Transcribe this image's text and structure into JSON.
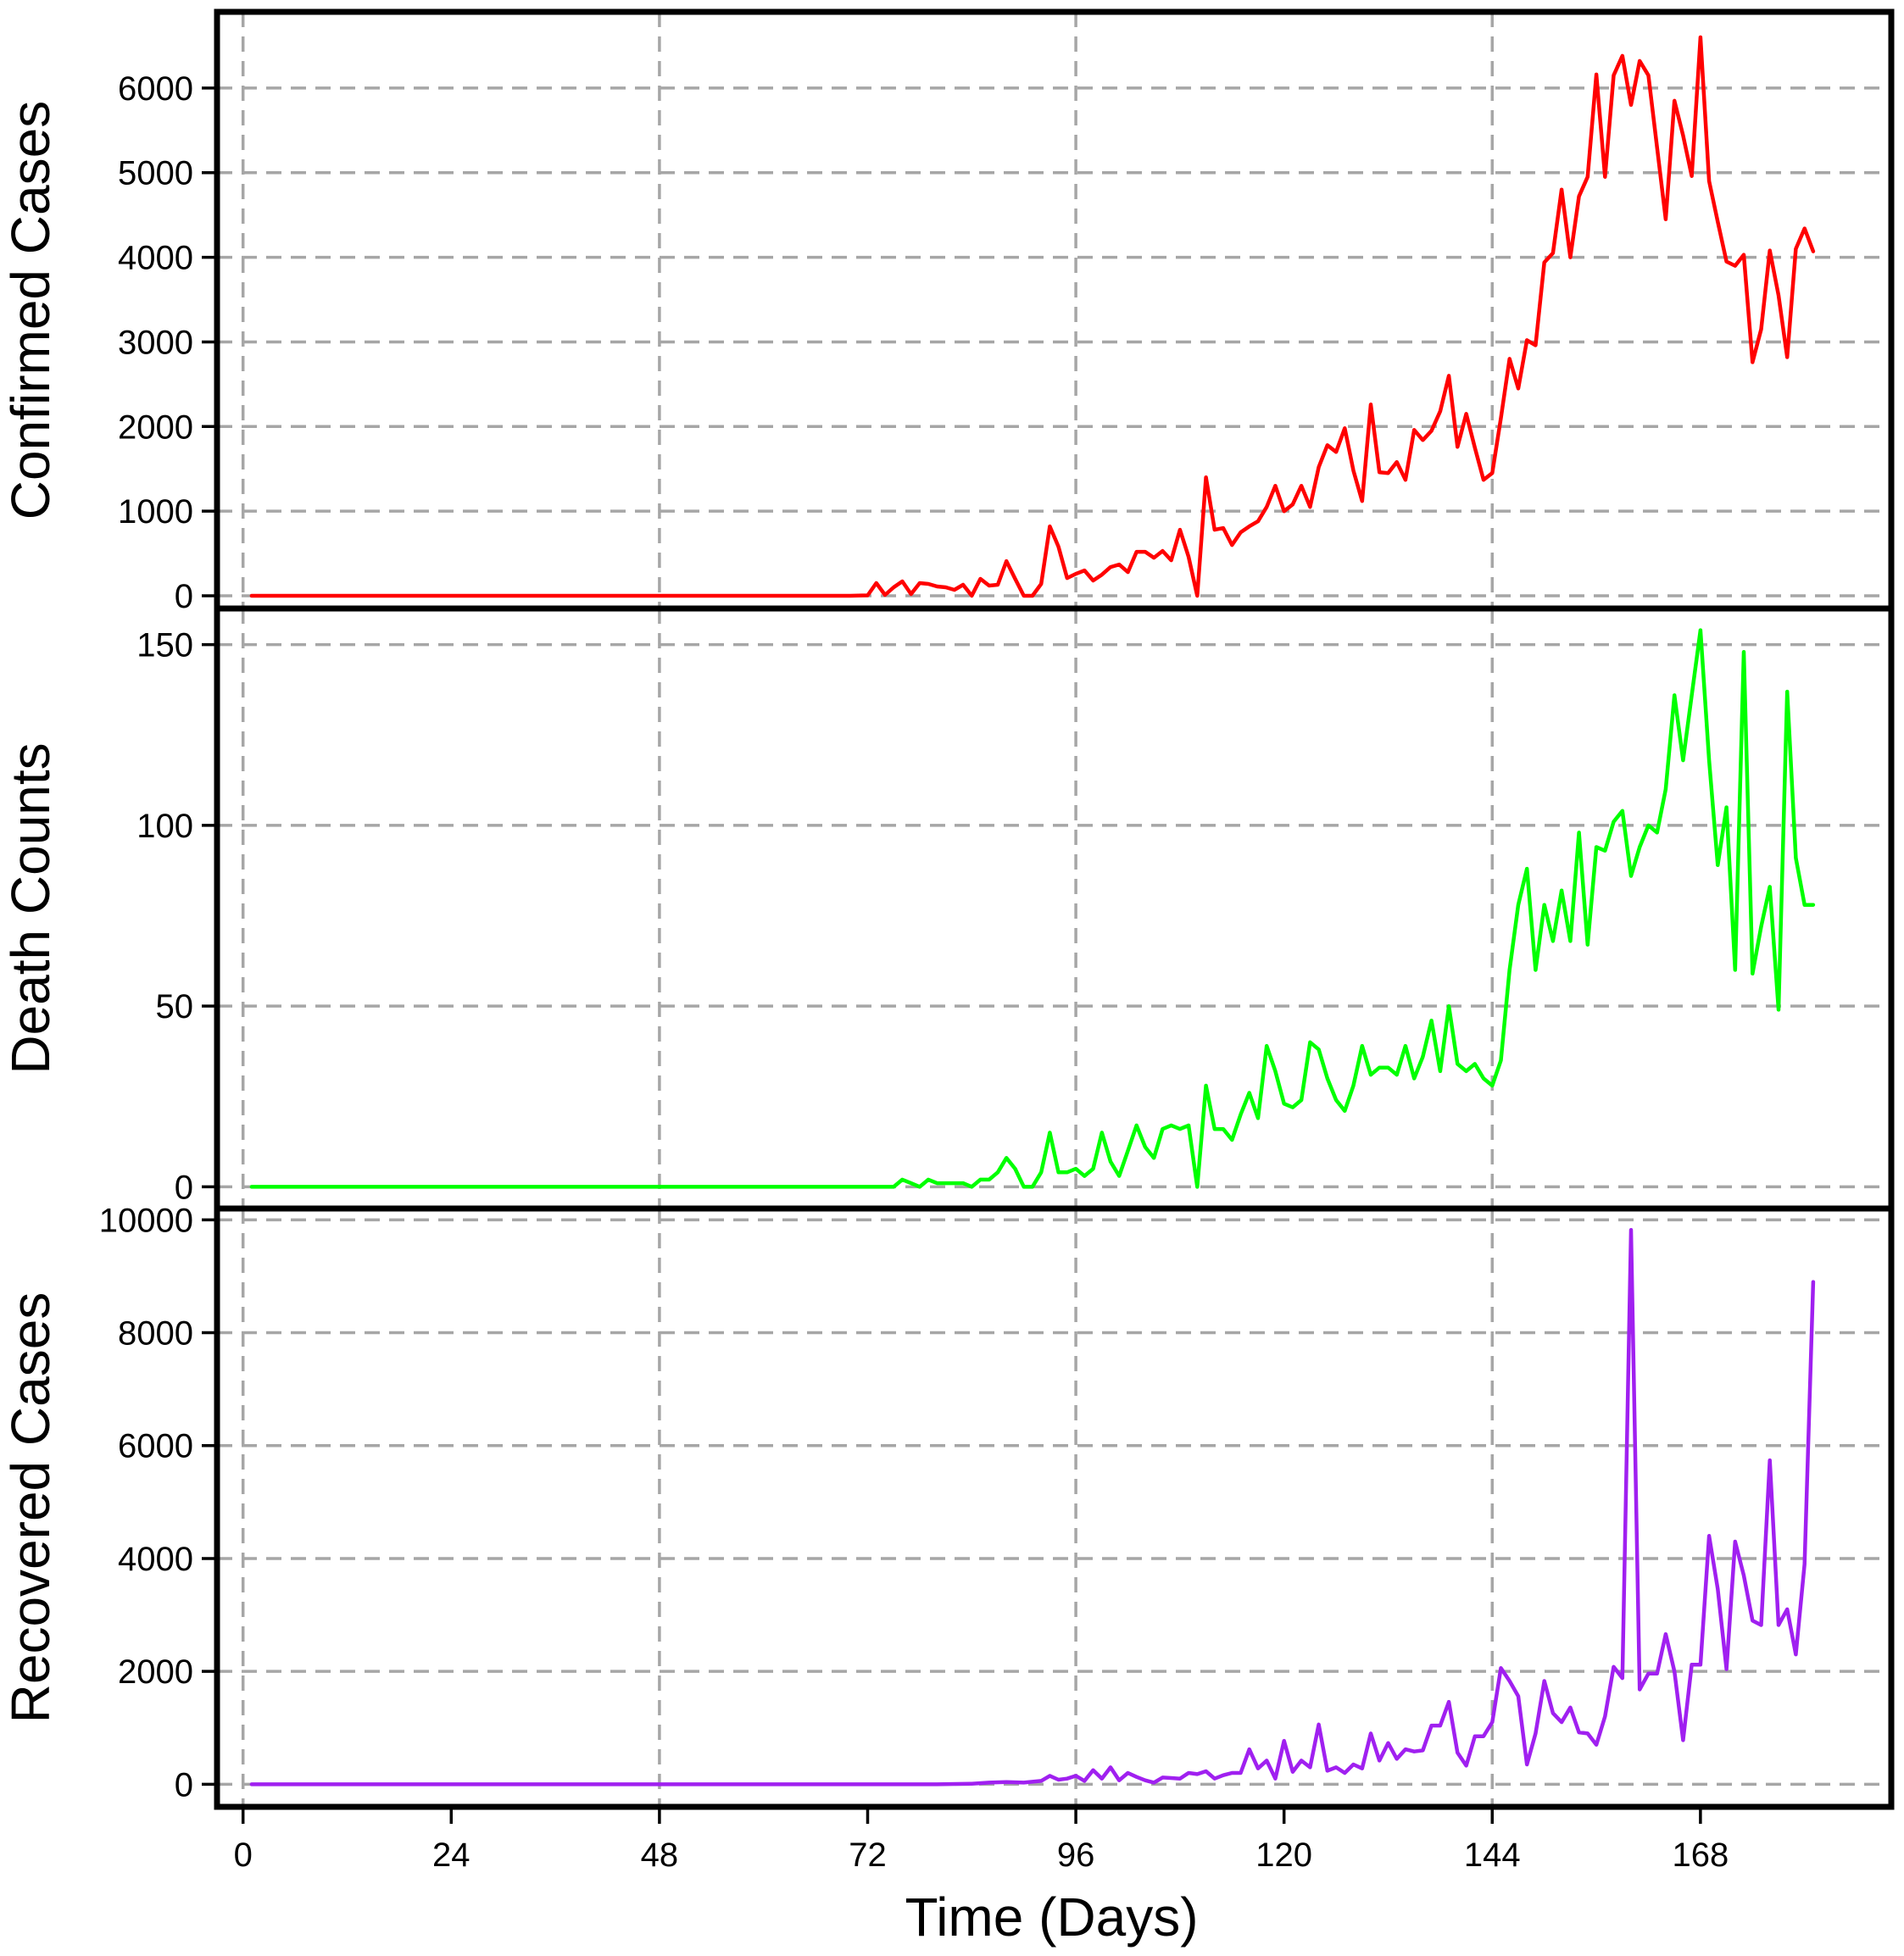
{
  "chart_data": {
    "type": "line",
    "x_axis": {
      "label": "Time (Days)",
      "ticks": [
        0,
        24,
        48,
        72,
        96,
        120,
        144,
        168
      ],
      "range": [
        -3,
        190
      ],
      "vertical_gridlines_at": [
        0,
        48,
        96,
        144
      ]
    },
    "panels": [
      {
        "ylabel": "Confirmed Cases",
        "color": "#ff0000",
        "y_ticks": [
          0,
          1000,
          2000,
          3000,
          4000,
          5000,
          6000
        ],
        "ylim": [
          -150,
          6900
        ],
        "points": [
          [
            1,
            0
          ],
          [
            30,
            0
          ],
          [
            55,
            0
          ],
          [
            66,
            0
          ],
          [
            68,
            0
          ],
          [
            70,
            0
          ],
          [
            72,
            5
          ],
          [
            73,
            150
          ],
          [
            74,
            10
          ],
          [
            75,
            100
          ],
          [
            76,
            170
          ],
          [
            77,
            20
          ],
          [
            78,
            150
          ],
          [
            79,
            140
          ],
          [
            80,
            110
          ],
          [
            81,
            100
          ],
          [
            82,
            70
          ],
          [
            83,
            130
          ],
          [
            84,
            0
          ],
          [
            85,
            200
          ],
          [
            86,
            120
          ],
          [
            87,
            130
          ],
          [
            88,
            410
          ],
          [
            89,
            200
          ],
          [
            90,
            0
          ],
          [
            91,
            0
          ],
          [
            92,
            140
          ],
          [
            93,
            820
          ],
          [
            94,
            580
          ],
          [
            95,
            210
          ],
          [
            96,
            260
          ],
          [
            97,
            300
          ],
          [
            98,
            180
          ],
          [
            99,
            250
          ],
          [
            100,
            340
          ],
          [
            101,
            370
          ],
          [
            102,
            280
          ],
          [
            103,
            520
          ],
          [
            104,
            520
          ],
          [
            105,
            450
          ],
          [
            106,
            530
          ],
          [
            107,
            420
          ],
          [
            108,
            780
          ],
          [
            109,
            460
          ],
          [
            110,
            0
          ],
          [
            111,
            1400
          ],
          [
            112,
            780
          ],
          [
            113,
            800
          ],
          [
            114,
            600
          ],
          [
            115,
            750
          ],
          [
            116,
            820
          ],
          [
            117,
            880
          ],
          [
            118,
            1050
          ],
          [
            119,
            1300
          ],
          [
            120,
            1000
          ],
          [
            121,
            1080
          ],
          [
            122,
            1300
          ],
          [
            123,
            1050
          ],
          [
            124,
            1520
          ],
          [
            125,
            1780
          ],
          [
            126,
            1700
          ],
          [
            127,
            1980
          ],
          [
            128,
            1480
          ],
          [
            129,
            1120
          ],
          [
            130,
            2260
          ],
          [
            131,
            1460
          ],
          [
            132,
            1450
          ],
          [
            133,
            1580
          ],
          [
            134,
            1370
          ],
          [
            135,
            1960
          ],
          [
            136,
            1840
          ],
          [
            137,
            1950
          ],
          [
            138,
            2180
          ],
          [
            139,
            2600
          ],
          [
            140,
            1760
          ],
          [
            141,
            2150
          ],
          [
            142,
            1750
          ],
          [
            143,
            1370
          ],
          [
            144,
            1450
          ],
          [
            145,
            2100
          ],
          [
            146,
            2800
          ],
          [
            147,
            2450
          ],
          [
            148,
            3020
          ],
          [
            149,
            2960
          ],
          [
            150,
            3940
          ],
          [
            151,
            4050
          ],
          [
            152,
            4800
          ],
          [
            153,
            4000
          ],
          [
            154,
            4720
          ],
          [
            155,
            4950
          ],
          [
            156,
            6160
          ],
          [
            157,
            4950
          ],
          [
            158,
            6150
          ],
          [
            159,
            6380
          ],
          [
            160,
            5800
          ],
          [
            161,
            6320
          ],
          [
            162,
            6150
          ],
          [
            163,
            5300
          ],
          [
            164,
            4450
          ],
          [
            165,
            5850
          ],
          [
            166,
            5440
          ],
          [
            167,
            4960
          ],
          [
            168,
            6600
          ],
          [
            169,
            4900
          ],
          [
            170,
            4420
          ],
          [
            171,
            3950
          ],
          [
            172,
            3900
          ],
          [
            173,
            4030
          ],
          [
            174,
            2760
          ],
          [
            175,
            3150
          ],
          [
            176,
            4080
          ],
          [
            177,
            3550
          ],
          [
            178,
            2820
          ],
          [
            179,
            4100
          ],
          [
            180,
            4340
          ],
          [
            181,
            4070
          ]
        ]
      },
      {
        "ylabel": "Death Counts",
        "color": "#00ff00",
        "y_ticks": [
          0,
          50,
          100,
          150
        ],
        "ylim": [
          -6,
          160
        ],
        "points": [
          [
            1,
            0
          ],
          [
            30,
            0
          ],
          [
            60,
            0
          ],
          [
            75,
            0
          ],
          [
            76,
            2
          ],
          [
            77,
            1
          ],
          [
            78,
            0
          ],
          [
            79,
            2
          ],
          [
            80,
            1
          ],
          [
            81,
            1
          ],
          [
            82,
            1
          ],
          [
            83,
            1
          ],
          [
            84,
            0
          ],
          [
            85,
            2
          ],
          [
            86,
            2
          ],
          [
            87,
            4
          ],
          [
            88,
            8
          ],
          [
            89,
            5
          ],
          [
            90,
            0
          ],
          [
            91,
            0
          ],
          [
            92,
            4
          ],
          [
            93,
            15
          ],
          [
            94,
            4
          ],
          [
            95,
            4
          ],
          [
            96,
            5
          ],
          [
            97,
            3
          ],
          [
            98,
            5
          ],
          [
            99,
            15
          ],
          [
            100,
            7
          ],
          [
            101,
            3
          ],
          [
            102,
            10
          ],
          [
            103,
            17
          ],
          [
            104,
            11
          ],
          [
            105,
            8
          ],
          [
            106,
            16
          ],
          [
            107,
            17
          ],
          [
            108,
            16
          ],
          [
            109,
            17
          ],
          [
            110,
            0
          ],
          [
            111,
            28
          ],
          [
            112,
            16
          ],
          [
            113,
            16
          ],
          [
            114,
            13
          ],
          [
            115,
            20
          ],
          [
            116,
            26
          ],
          [
            117,
            19
          ],
          [
            118,
            39
          ],
          [
            119,
            32
          ],
          [
            120,
            23
          ],
          [
            121,
            22
          ],
          [
            122,
            24
          ],
          [
            123,
            40
          ],
          [
            124,
            38
          ],
          [
            125,
            30
          ],
          [
            126,
            24
          ],
          [
            127,
            21
          ],
          [
            128,
            28
          ],
          [
            129,
            39
          ],
          [
            130,
            31
          ],
          [
            131,
            33
          ],
          [
            132,
            33
          ],
          [
            133,
            31
          ],
          [
            134,
            39
          ],
          [
            135,
            30
          ],
          [
            136,
            36
          ],
          [
            137,
            46
          ],
          [
            138,
            32
          ],
          [
            139,
            50
          ],
          [
            140,
            34
          ],
          [
            141,
            32
          ],
          [
            142,
            34
          ],
          [
            143,
            30
          ],
          [
            144,
            28
          ],
          [
            145,
            35
          ],
          [
            146,
            60
          ],
          [
            147,
            78
          ],
          [
            148,
            88
          ],
          [
            149,
            60
          ],
          [
            150,
            78
          ],
          [
            151,
            68
          ],
          [
            152,
            82
          ],
          [
            153,
            68
          ],
          [
            154,
            98
          ],
          [
            155,
            67
          ],
          [
            156,
            94
          ],
          [
            157,
            93
          ],
          [
            158,
            101
          ],
          [
            159,
            104
          ],
          [
            160,
            86
          ],
          [
            161,
            94
          ],
          [
            162,
            100
          ],
          [
            163,
            98
          ],
          [
            164,
            110
          ],
          [
            165,
            136
          ],
          [
            166,
            118
          ],
          [
            167,
            136
          ],
          [
            168,
            154
          ],
          [
            169,
            118
          ],
          [
            170,
            89
          ],
          [
            171,
            105
          ],
          [
            172,
            60
          ],
          [
            173,
            148
          ],
          [
            174,
            59
          ],
          [
            175,
            72
          ],
          [
            176,
            83
          ],
          [
            177,
            49
          ],
          [
            178,
            137
          ],
          [
            179,
            91
          ],
          [
            180,
            78
          ],
          [
            181,
            78
          ]
        ]
      },
      {
        "ylabel": "Recovered Cases",
        "color": "#a020f0",
        "y_ticks": [
          0,
          2000,
          4000,
          6000,
          8000,
          10000
        ],
        "ylim": [
          -400,
          10200
        ],
        "points": [
          [
            1,
            0
          ],
          [
            40,
            0
          ],
          [
            80,
            0
          ],
          [
            84,
            10
          ],
          [
            86,
            30
          ],
          [
            88,
            40
          ],
          [
            90,
            30
          ],
          [
            92,
            60
          ],
          [
            93,
            150
          ],
          [
            94,
            80
          ],
          [
            95,
            100
          ],
          [
            96,
            150
          ],
          [
            97,
            60
          ],
          [
            98,
            250
          ],
          [
            99,
            100
          ],
          [
            100,
            300
          ],
          [
            101,
            70
          ],
          [
            102,
            200
          ],
          [
            103,
            130
          ],
          [
            104,
            70
          ],
          [
            105,
            30
          ],
          [
            106,
            120
          ],
          [
            107,
            110
          ],
          [
            108,
            100
          ],
          [
            109,
            200
          ],
          [
            110,
            180
          ],
          [
            111,
            230
          ],
          [
            112,
            100
          ],
          [
            113,
            160
          ],
          [
            114,
            200
          ],
          [
            115,
            200
          ],
          [
            116,
            620
          ],
          [
            117,
            280
          ],
          [
            118,
            420
          ],
          [
            119,
            100
          ],
          [
            120,
            770
          ],
          [
            121,
            220
          ],
          [
            122,
            420
          ],
          [
            123,
            300
          ],
          [
            124,
            1060
          ],
          [
            125,
            240
          ],
          [
            126,
            300
          ],
          [
            127,
            200
          ],
          [
            128,
            350
          ],
          [
            129,
            280
          ],
          [
            130,
            900
          ],
          [
            131,
            420
          ],
          [
            132,
            730
          ],
          [
            133,
            450
          ],
          [
            134,
            620
          ],
          [
            135,
            580
          ],
          [
            136,
            600
          ],
          [
            137,
            1040
          ],
          [
            138,
            1040
          ],
          [
            139,
            1460
          ],
          [
            140,
            560
          ],
          [
            141,
            330
          ],
          [
            142,
            850
          ],
          [
            143,
            850
          ],
          [
            144,
            1100
          ],
          [
            145,
            2060
          ],
          [
            146,
            1830
          ],
          [
            147,
            1560
          ],
          [
            148,
            350
          ],
          [
            149,
            900
          ],
          [
            150,
            1830
          ],
          [
            151,
            1260
          ],
          [
            152,
            1100
          ],
          [
            153,
            1360
          ],
          [
            154,
            920
          ],
          [
            155,
            900
          ],
          [
            156,
            700
          ],
          [
            157,
            1200
          ],
          [
            158,
            2080
          ],
          [
            159,
            1880
          ],
          [
            160,
            9820
          ],
          [
            161,
            1680
          ],
          [
            162,
            1960
          ],
          [
            163,
            1960
          ],
          [
            164,
            2660
          ],
          [
            165,
            2000
          ],
          [
            166,
            780
          ],
          [
            167,
            2120
          ],
          [
            168,
            2120
          ],
          [
            169,
            4400
          ],
          [
            170,
            3460
          ],
          [
            171,
            2040
          ],
          [
            172,
            4300
          ],
          [
            173,
            3700
          ],
          [
            174,
            2900
          ],
          [
            175,
            2820
          ],
          [
            176,
            5740
          ],
          [
            177,
            2820
          ],
          [
            178,
            3100
          ],
          [
            179,
            2300
          ],
          [
            180,
            3900
          ],
          [
            181,
            8900
          ]
        ]
      }
    ]
  }
}
